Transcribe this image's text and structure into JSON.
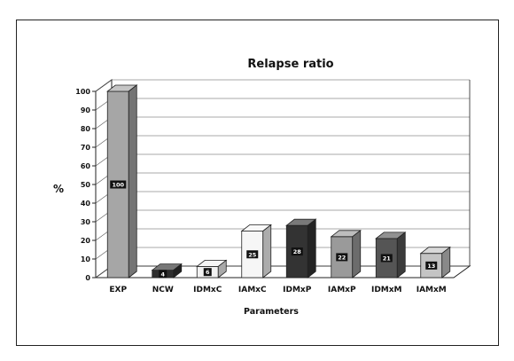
{
  "chart_data": {
    "type": "bar",
    "title": "Relapse ratio",
    "xlabel": "Parameters",
    "ylabel": "%",
    "ylim": [
      0,
      100
    ],
    "yticks": [
      "0",
      "10",
      "20",
      "30",
      "40",
      "50",
      "60",
      "70",
      "80",
      "90",
      "100"
    ],
    "grid": true,
    "style": "3d",
    "categories": [
      "EXP",
      "NCW",
      "IDMxC",
      "IAMxC",
      "IDMxP",
      "IAMxP",
      "IDMxM",
      "IAMxM"
    ],
    "values": [
      100,
      4,
      6,
      25,
      28,
      22,
      21,
      13
    ],
    "data_labels": [
      "100",
      "4",
      "6",
      "25",
      "28",
      "22",
      "21",
      "13"
    ],
    "colors": [
      "#a6a6a6",
      "#2e2e2e",
      "#f2f2f2",
      "#f6f6f6",
      "#333333",
      "#9a9a9a",
      "#555555",
      "#c4c4c4"
    ]
  }
}
